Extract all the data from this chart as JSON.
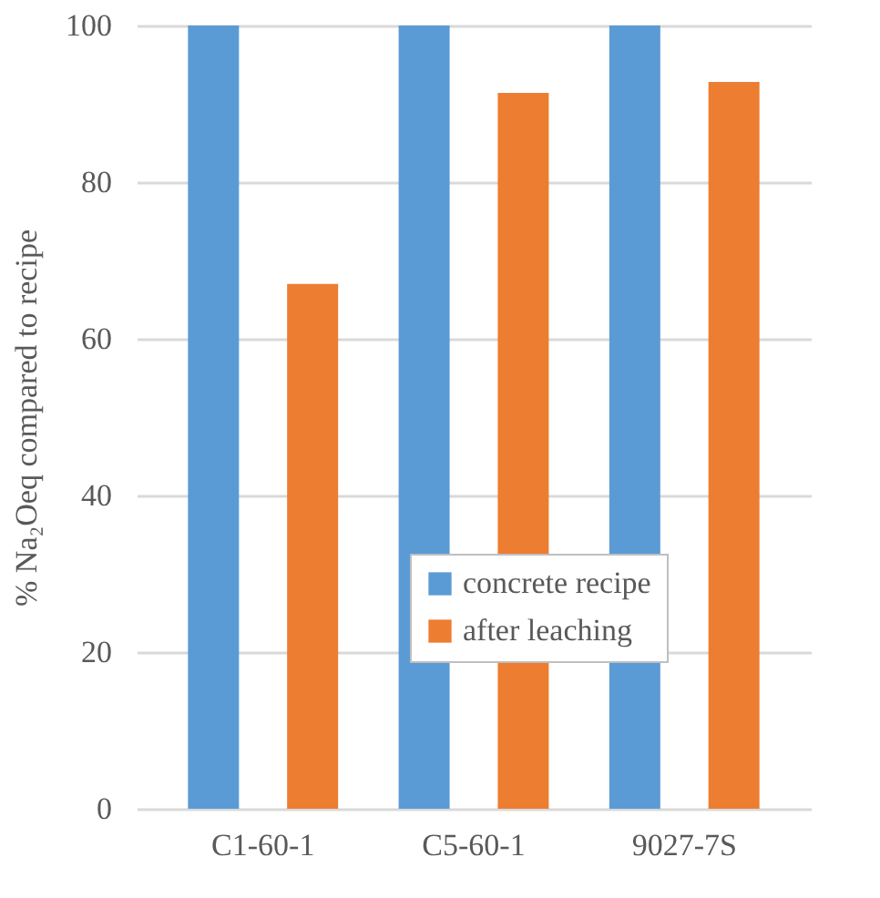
{
  "chart_data": {
    "type": "bar",
    "ylabel": "% Na₂Oeq compared to recipe",
    "categories": [
      "C1-60-1",
      "C5-60-1",
      "9027-7S"
    ],
    "series": [
      {
        "name": "concrete recipe",
        "color": "#5b9bd5",
        "values": [
          100,
          100,
          100
        ]
      },
      {
        "name": "after leaching",
        "color": "#ed7d31",
        "values": [
          67,
          91.4,
          92.8
        ]
      }
    ],
    "ylim": [
      0,
      100
    ],
    "yticks": [
      0,
      20,
      40,
      60,
      80,
      100
    ],
    "grid": "y",
    "legend": "bottom"
  }
}
